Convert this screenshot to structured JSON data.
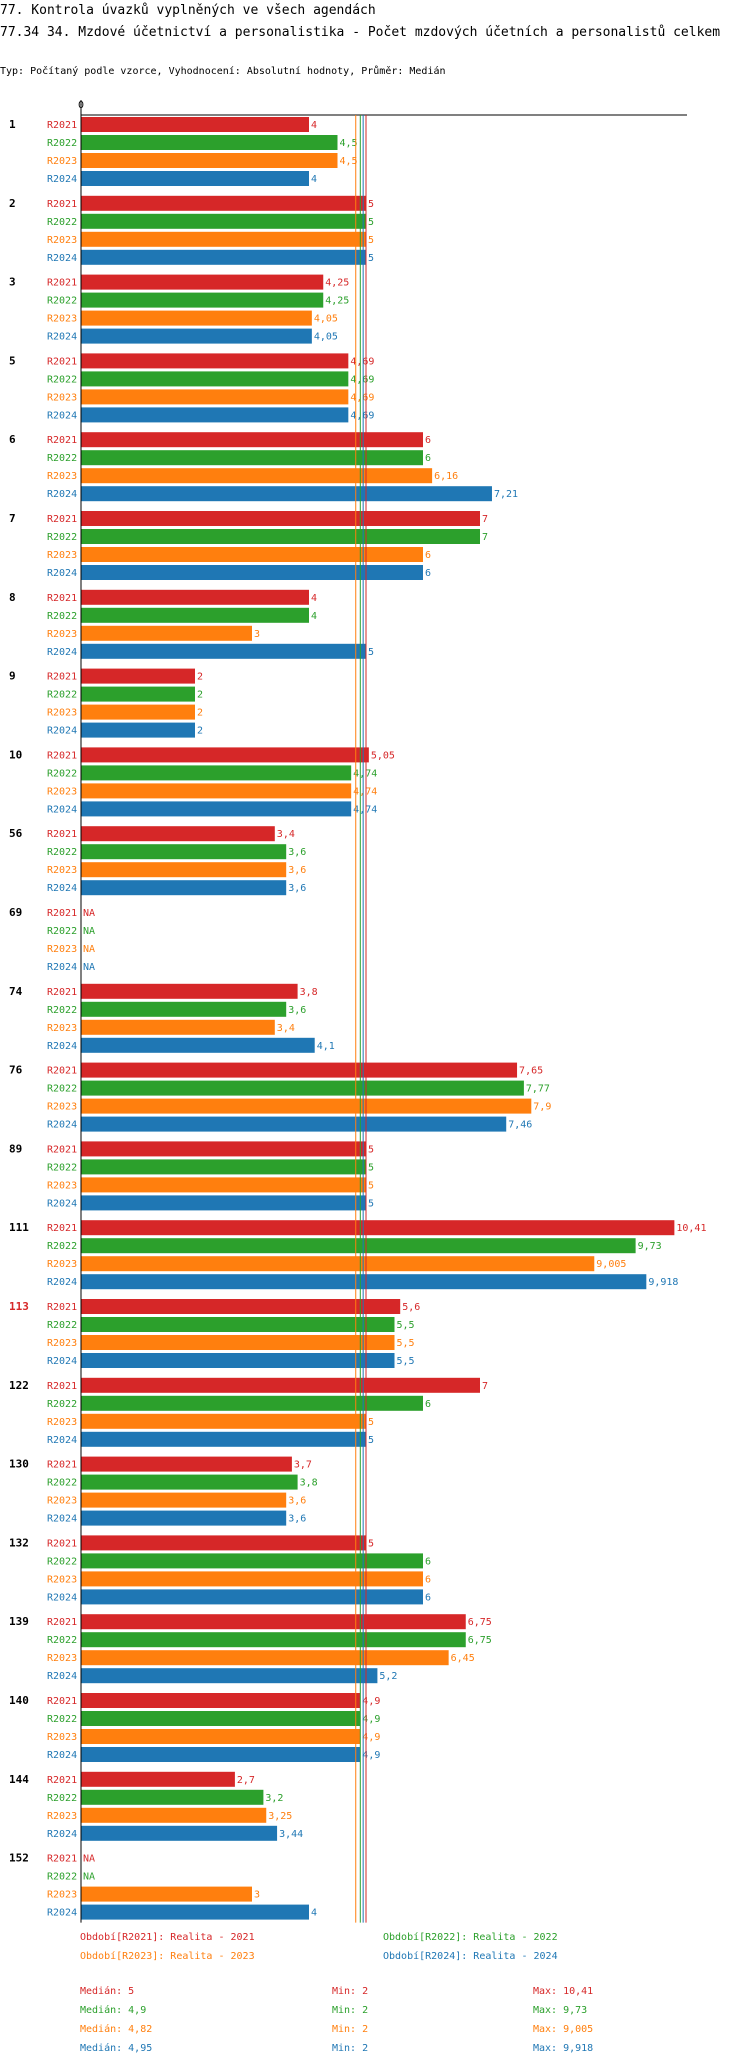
{
  "header": {
    "title": "77. Kontrola úvazků vyplněných ve všech agendách",
    "subtitle": "77.34 34. Mzdové účetnictví a personalistika - Počet mzdových účetních a personalistů celkem",
    "type_line": "Typ: Počítaný podle vzorce, Vyhodnocení: Absolutní hodnoty, Průměr: Medián"
  },
  "colors": {
    "R2021": "#d62728",
    "R2022": "#2ca02c",
    "R2023": "#ff7f0e",
    "R2024": "#1f77b4",
    "highlight": "#d62728"
  },
  "chart_data": {
    "type": "bar",
    "orientation": "horizontal",
    "axis_zero_label": "0",
    "xlim": [
      0,
      10.41
    ],
    "series_names": [
      "R2021",
      "R2022",
      "R2023",
      "R2024"
    ],
    "categories": [
      "1",
      "2",
      "3",
      "5",
      "6",
      "7",
      "8",
      "9",
      "10",
      "56",
      "69",
      "74",
      "76",
      "89",
      "111",
      "113",
      "122",
      "130",
      "132",
      "139",
      "140",
      "144",
      "152"
    ],
    "highlighted_category": "113",
    "values": [
      [
        "4",
        "4,5",
        "4,5",
        "4"
      ],
      [
        "5",
        "5",
        "5",
        "5"
      ],
      [
        "4,25",
        "4,25",
        "4,05",
        "4,05"
      ],
      [
        "4,69",
        "4,69",
        "4,69",
        "4,69"
      ],
      [
        "6",
        "6",
        "6,16",
        "7,21"
      ],
      [
        "7",
        "7",
        "6",
        "6"
      ],
      [
        "4",
        "4",
        "3",
        "5"
      ],
      [
        "2",
        "2",
        "2",
        "2"
      ],
      [
        "5,05",
        "4,74",
        "4,74",
        "4,74"
      ],
      [
        "3,4",
        "3,6",
        "3,6",
        "3,6"
      ],
      [
        "NA",
        "NA",
        "NA",
        "NA"
      ],
      [
        "3,8",
        "3,6",
        "3,4",
        "4,1"
      ],
      [
        "7,65",
        "7,77",
        "7,9",
        "7,46"
      ],
      [
        "5",
        "5",
        "5",
        "5"
      ],
      [
        "10,41",
        "9,73",
        "9,005",
        "9,918"
      ],
      [
        "5,6",
        "5,5",
        "5,5",
        "5,5"
      ],
      [
        "7",
        "6",
        "5",
        "5"
      ],
      [
        "3,7",
        "3,8",
        "3,6",
        "3,6"
      ],
      [
        "5",
        "6",
        "6",
        "6"
      ],
      [
        "6,75",
        "6,75",
        "6,45",
        "5,2"
      ],
      [
        "4,9",
        "4,9",
        "4,9",
        "4,9"
      ],
      [
        "2,7",
        "3,2",
        "3,25",
        "3,44"
      ],
      [
        "NA",
        "NA",
        "3",
        "4"
      ]
    ],
    "medians": [
      5,
      4.9,
      4.82,
      4.95
    ]
  },
  "legend": {
    "r2021": "Období[R2021]: Realita - 2021",
    "r2022": "Období[R2022]: Realita - 2022",
    "r2023": "Období[R2023]: Realita - 2023",
    "r2024": "Období[R2024]: Realita - 2024"
  },
  "stats": [
    {
      "median": "Medián: 5",
      "min": "Min: 2",
      "max": "Max: 10,41"
    },
    {
      "median": "Medián: 4,9",
      "min": "Min: 2",
      "max": "Max: 9,73"
    },
    {
      "median": "Medián: 4,82",
      "min": "Min: 2",
      "max": "Max: 9,005"
    },
    {
      "median": "Medián: 4,95",
      "min": "Min: 2",
      "max": "Max: 9,918"
    }
  ]
}
